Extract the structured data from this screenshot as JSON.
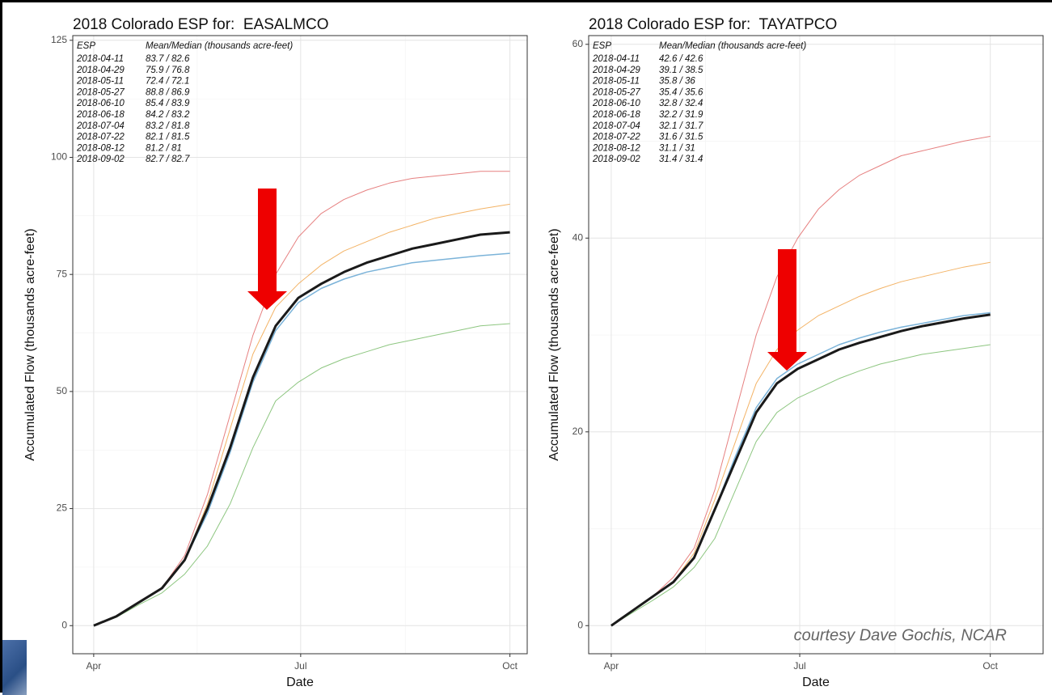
{
  "chart_data": [
    {
      "type": "line",
      "title": "2018 Colorado ESP for:  EASALMCO",
      "xlabel": "Date",
      "ylabel": "Accumulated Flow (thousands acre-feet)",
      "x": [
        0,
        10,
        20,
        30,
        40,
        50,
        60,
        70,
        80,
        90,
        100,
        110,
        120,
        130,
        140,
        150,
        160,
        170,
        183
      ],
      "xlim": [
        -9.2,
        190.6
      ],
      "xticks": [
        {
          "value": 0,
          "label": "Apr"
        },
        {
          "value": 91,
          "label": "Jul"
        },
        {
          "value": 183,
          "label": "Oct"
        }
      ],
      "ylim": [
        -6,
        126
      ],
      "yticks": [
        0,
        25,
        50,
        75,
        100,
        125
      ],
      "grid": true,
      "series": [
        {
          "color": "#e06060",
          "linewidth": 1,
          "values": [
            0,
            2,
            5,
            8,
            15,
            28,
            45,
            62,
            75,
            83,
            88,
            91,
            93,
            94.5,
            95.5,
            96,
            96.5,
            97,
            97
          ]
        },
        {
          "color": "#f0a040",
          "linewidth": 1,
          "values": [
            0,
            2,
            5,
            8,
            14,
            26,
            42,
            58,
            68,
            73,
            77,
            80,
            82,
            84,
            85.5,
            87,
            88,
            89,
            90
          ]
        },
        {
          "color": "#70b860",
          "linewidth": 1,
          "values": [
            0,
            1.8,
            4.5,
            7,
            11,
            17,
            26,
            38,
            48,
            52,
            55,
            57,
            58.5,
            60,
            61,
            62,
            63,
            64,
            64.5
          ]
        },
        {
          "color": "#5aa0d0",
          "linewidth": 1.5,
          "values": [
            0,
            2,
            5,
            8,
            14,
            24,
            37,
            52,
            63,
            69,
            72,
            74,
            75.5,
            76.5,
            77.5,
            78,
            78.5,
            79,
            79.5
          ]
        },
        {
          "color": "#1a1a1a",
          "linewidth": 3,
          "values": [
            0,
            2,
            5,
            8,
            14,
            25,
            38,
            53,
            64,
            70,
            73,
            75.5,
            77.5,
            79,
            80.5,
            81.5,
            82.5,
            83.5,
            84
          ]
        }
      ],
      "annotation_table": {
        "header": [
          "ESP",
          "Mean/Median (thousands acre-feet)"
        ],
        "rows": [
          [
            "2018-04-11",
            "83.7 / 82.6"
          ],
          [
            "2018-04-29",
            "75.9 / 76.8"
          ],
          [
            "2018-05-11",
            "72.4 / 72.1"
          ],
          [
            "2018-05-27",
            "88.8 / 86.9"
          ],
          [
            "2018-06-10",
            "85.4 / 83.9"
          ],
          [
            "2018-06-18",
            "84.2 / 83.2"
          ],
          [
            "2018-07-04",
            "83.2 / 81.8"
          ],
          [
            "2018-07-22",
            "82.1 / 81.5"
          ],
          [
            "2018-08-12",
            "81.2 / 81"
          ],
          [
            "2018-09-02",
            "82.7 / 82.7"
          ]
        ]
      }
    },
    {
      "type": "line",
      "title": "2018 Colorado ESP for:  TAYATPCO",
      "xlabel": "Date",
      "ylabel": "Accumulated Flow (thousands acre-feet)",
      "x": [
        0,
        10,
        20,
        30,
        40,
        50,
        60,
        70,
        80,
        90,
        100,
        110,
        120,
        130,
        140,
        150,
        160,
        170,
        183
      ],
      "xlim": [
        -10.9,
        208.5
      ],
      "xticks": [
        {
          "value": 0,
          "label": "Apr"
        },
        {
          "value": 91,
          "label": "Jul"
        },
        {
          "value": 183,
          "label": "Oct"
        }
      ],
      "ylim": [
        -2.9,
        60.9
      ],
      "yticks": [
        0,
        20,
        40,
        60
      ],
      "grid": true,
      "series": [
        {
          "color": "#e06060",
          "linewidth": 1,
          "values": [
            0,
            1.5,
            3,
            5,
            8,
            14,
            22,
            30,
            36,
            40,
            43,
            45,
            46.5,
            47.5,
            48.5,
            49,
            49.5,
            50,
            50.5
          ]
        },
        {
          "color": "#f0a040",
          "linewidth": 1,
          "values": [
            0,
            1.5,
            3,
            4.5,
            7.5,
            13,
            19,
            25,
            28.5,
            30.5,
            32,
            33,
            34,
            34.8,
            35.5,
            36,
            36.5,
            37,
            37.5
          ]
        },
        {
          "color": "#70b860",
          "linewidth": 1,
          "values": [
            0,
            1.3,
            2.6,
            4,
            6,
            9,
            14,
            19,
            22,
            23.5,
            24.5,
            25.5,
            26.3,
            27,
            27.5,
            28,
            28.3,
            28.6,
            29
          ]
        },
        {
          "color": "#5aa0d0",
          "linewidth": 1.5,
          "values": [
            0,
            1.5,
            3,
            4.5,
            7,
            12,
            17.5,
            22.5,
            25.5,
            27,
            28,
            29,
            29.7,
            30.3,
            30.8,
            31.2,
            31.6,
            32,
            32.3
          ]
        },
        {
          "color": "#1a1a1a",
          "linewidth": 3,
          "values": [
            0,
            1.5,
            3,
            4.5,
            7,
            12,
            17,
            22,
            25,
            26.5,
            27.5,
            28.5,
            29.2,
            29.8,
            30.4,
            30.9,
            31.3,
            31.7,
            32.1
          ]
        }
      ],
      "annotation_table": {
        "header": [
          "ESP",
          "Mean/Median (thousands acre-feet)"
        ],
        "rows": [
          [
            "2018-04-11",
            "42.6 / 42.6"
          ],
          [
            "2018-04-29",
            "39.1 / 38.5"
          ],
          [
            "2018-05-11",
            "35.8 / 36"
          ],
          [
            "2018-05-27",
            "35.4 / 35.6"
          ],
          [
            "2018-06-10",
            "32.8 / 32.4"
          ],
          [
            "2018-06-18",
            "32.2 / 31.9"
          ],
          [
            "2018-07-04",
            "32.1 / 31.7"
          ],
          [
            "2018-07-22",
            "31.6 / 31.5"
          ],
          [
            "2018-08-12",
            "31.1 / 31"
          ],
          [
            "2018-09-02",
            "31.4 / 31.4"
          ]
        ]
      },
      "credit": "courtesy Dave Gochis, NCAR"
    }
  ]
}
